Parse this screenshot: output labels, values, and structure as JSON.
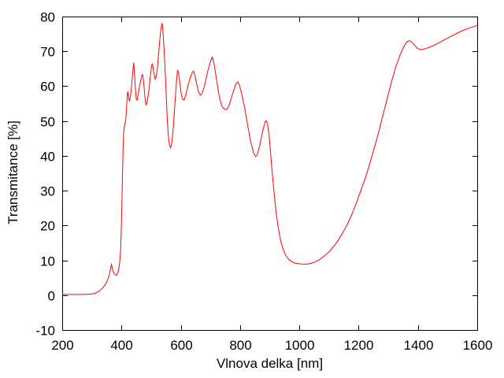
{
  "chart_data": {
    "type": "line",
    "title": "",
    "xlabel": "Vlnova delka [nm]",
    "ylabel": "Transmitance [%]",
    "xlim": [
      200,
      1600
    ],
    "ylim": [
      -10,
      80
    ],
    "x_ticks": [
      200,
      400,
      600,
      800,
      1000,
      1200,
      1400,
      1600
    ],
    "y_ticks": [
      -10,
      0,
      10,
      20,
      30,
      40,
      50,
      60,
      70,
      80
    ],
    "grid": false,
    "legend_position": "none",
    "line_color": "#ff0000",
    "frame_color": "#000000",
    "background": "#ffffff",
    "series": [
      {
        "name": "transmittance",
        "points": [
          [
            200,
            0.2
          ],
          [
            240,
            0.2
          ],
          [
            270,
            0.2
          ],
          [
            295,
            0.3
          ],
          [
            310,
            0.5
          ],
          [
            320,
            0.9
          ],
          [
            330,
            1.5
          ],
          [
            340,
            2.4
          ],
          [
            348,
            3.4
          ],
          [
            355,
            4.7
          ],
          [
            360,
            6.2
          ],
          [
            364,
            8.0
          ],
          [
            366,
            8.8
          ],
          [
            368,
            8.3
          ],
          [
            371,
            7.0
          ],
          [
            375,
            6.2
          ],
          [
            379,
            5.8
          ],
          [
            383,
            5.7
          ],
          [
            387,
            6.3
          ],
          [
            391,
            7.5
          ],
          [
            394,
            9.5
          ],
          [
            397,
            13
          ],
          [
            399,
            18
          ],
          [
            401,
            25
          ],
          [
            403,
            33
          ],
          [
            405,
            41
          ],
          [
            407,
            46
          ],
          [
            409,
            48.3
          ],
          [
            411,
            48.6
          ],
          [
            413,
            49.5
          ],
          [
            415,
            51
          ],
          [
            417,
            53.5
          ],
          [
            419,
            56.5
          ],
          [
            421,
            58.5
          ],
          [
            423,
            57.5
          ],
          [
            425,
            56.2
          ],
          [
            427,
            55.8
          ],
          [
            430,
            57
          ],
          [
            434,
            60
          ],
          [
            438,
            64
          ],
          [
            441,
            66.8
          ],
          [
            444,
            64
          ],
          [
            447,
            59
          ],
          [
            450,
            56.2
          ],
          [
            453,
            56
          ],
          [
            457,
            58
          ],
          [
            462,
            60.5
          ],
          [
            467,
            62.5
          ],
          [
            471,
            63.5
          ],
          [
            475,
            61
          ],
          [
            479,
            57
          ],
          [
            483,
            54.5
          ],
          [
            487,
            55.5
          ],
          [
            492,
            58.5
          ],
          [
            497,
            62.5
          ],
          [
            501,
            65.5
          ],
          [
            504,
            66.5
          ],
          [
            507,
            65
          ],
          [
            511,
            63
          ],
          [
            514,
            62
          ],
          [
            517,
            62.8
          ],
          [
            521,
            65
          ],
          [
            526,
            70
          ],
          [
            531,
            75
          ],
          [
            535,
            77.5
          ],
          [
            537,
            78.1
          ],
          [
            539,
            77
          ],
          [
            542,
            73
          ],
          [
            546,
            67
          ],
          [
            550,
            59
          ],
          [
            554,
            51
          ],
          [
            558,
            45.5
          ],
          [
            562,
            43
          ],
          [
            566,
            42.3
          ],
          [
            570,
            44
          ],
          [
            575,
            48.5
          ],
          [
            581,
            56
          ],
          [
            586,
            62
          ],
          [
            589,
            64.5
          ],
          [
            592,
            64
          ],
          [
            596,
            61.5
          ],
          [
            601,
            58
          ],
          [
            606,
            56.3
          ],
          [
            611,
            56
          ],
          [
            617,
            57.5
          ],
          [
            624,
            60
          ],
          [
            632,
            62.5
          ],
          [
            639,
            64
          ],
          [
            643,
            64.3
          ],
          [
            648,
            63
          ],
          [
            654,
            60.5
          ],
          [
            660,
            58.3
          ],
          [
            666,
            57.4
          ],
          [
            672,
            58
          ],
          [
            680,
            60
          ],
          [
            690,
            64
          ],
          [
            700,
            67
          ],
          [
            706,
            68.4
          ],
          [
            711,
            67
          ],
          [
            717,
            64
          ],
          [
            724,
            60
          ],
          [
            731,
            56.5
          ],
          [
            739,
            54.2
          ],
          [
            747,
            53.4
          ],
          [
            755,
            53.3
          ],
          [
            762,
            54.3
          ],
          [
            770,
            56.5
          ],
          [
            779,
            59
          ],
          [
            787,
            60.8
          ],
          [
            792,
            61.2
          ],
          [
            797,
            60.5
          ],
          [
            805,
            58
          ],
          [
            815,
            54
          ],
          [
            825,
            49
          ],
          [
            835,
            44.5
          ],
          [
            845,
            41
          ],
          [
            852,
            39.8
          ],
          [
            858,
            40.3
          ],
          [
            866,
            43
          ],
          [
            876,
            47
          ],
          [
            884,
            49.7
          ],
          [
            888,
            50.1
          ],
          [
            892,
            49.4
          ],
          [
            898,
            46
          ],
          [
            903,
            41
          ],
          [
            908,
            35.5
          ],
          [
            914,
            30
          ],
          [
            920,
            25
          ],
          [
            928,
            19.8
          ],
          [
            936,
            16
          ],
          [
            945,
            13.2
          ],
          [
            955,
            11.3
          ],
          [
            965,
            10.2
          ],
          [
            975,
            9.6
          ],
          [
            985,
            9.2
          ],
          [
            1000,
            9.0
          ],
          [
            1012,
            8.9
          ],
          [
            1025,
            8.9
          ],
          [
            1040,
            9.1
          ],
          [
            1055,
            9.6
          ],
          [
            1070,
            10.3
          ],
          [
            1085,
            11.3
          ],
          [
            1100,
            12.4
          ],
          [
            1115,
            13.9
          ],
          [
            1130,
            15.6
          ],
          [
            1145,
            17.7
          ],
          [
            1160,
            20
          ],
          [
            1175,
            22.8
          ],
          [
            1190,
            26
          ],
          [
            1205,
            29.5
          ],
          [
            1220,
            33
          ],
          [
            1235,
            37
          ],
          [
            1250,
            41.5
          ],
          [
            1265,
            46
          ],
          [
            1280,
            51
          ],
          [
            1295,
            56
          ],
          [
            1310,
            61
          ],
          [
            1325,
            65.5
          ],
          [
            1340,
            69
          ],
          [
            1352,
            71.3
          ],
          [
            1362,
            72.7
          ],
          [
            1370,
            73.1
          ],
          [
            1378,
            72.8
          ],
          [
            1388,
            71.8
          ],
          [
            1398,
            70.9
          ],
          [
            1408,
            70.5
          ],
          [
            1418,
            70.6
          ],
          [
            1430,
            70.9
          ],
          [
            1445,
            71.4
          ],
          [
            1460,
            72
          ],
          [
            1480,
            72.9
          ],
          [
            1500,
            73.8
          ],
          [
            1520,
            74.7
          ],
          [
            1540,
            75.6
          ],
          [
            1560,
            76.3
          ],
          [
            1580,
            76.9
          ],
          [
            1600,
            77.4
          ]
        ]
      }
    ]
  }
}
